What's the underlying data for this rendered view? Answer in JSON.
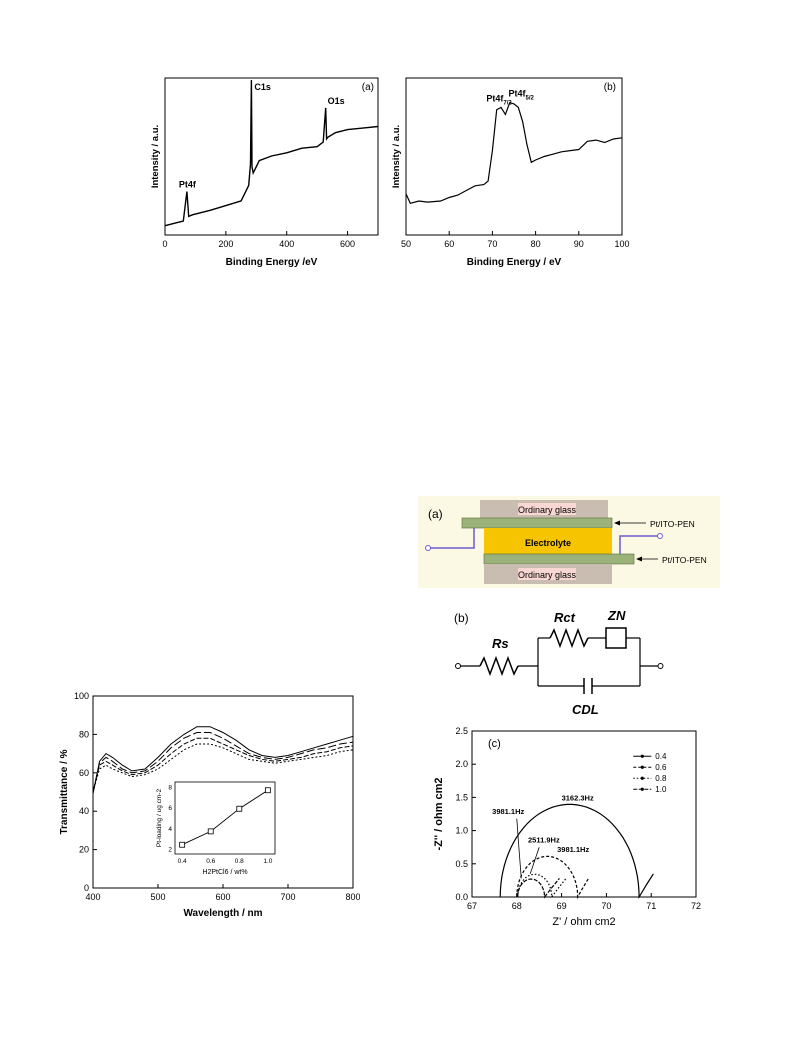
{
  "xps_survey": {
    "panel_label": "(a)",
    "xlabel": "Binding Energy /eV",
    "ylabel": "Intensity / a.u.",
    "x_ticks": [
      "0",
      "200",
      "400",
      "600"
    ],
    "peaks": [
      "Pt4f",
      "C1s",
      "O1s"
    ]
  },
  "xps_detail": {
    "panel_label": "(b)",
    "xlabel": "Binding Energy / eV",
    "ylabel": "Intensity / a.u.",
    "x_ticks": [
      "50",
      "60",
      "70",
      "80",
      "90",
      "100"
    ],
    "peak1_main": "Pt4f",
    "peak1_sub": "7/2",
    "peak2_main": "Pt4f",
    "peak2_sub": "5/2"
  },
  "cell": {
    "panel_label": "(a)",
    "top_glass": "Ordinary glass",
    "bottom_glass": "Ordinary glass",
    "electrolyte": "Electrolyte",
    "top_electrode": "Pt/ITO-PEN",
    "bottom_electrode": "Pt/ITO-PEN",
    "colors": {
      "glass": "#c9bdb2",
      "electrode": "#9bb37a",
      "electrolyte": "#f6c400",
      "label_bg": "#f8d7d3",
      "panel_bg": "#fbf8e3",
      "wire": "#6a5acd"
    }
  },
  "circuit": {
    "panel_label": "(b)",
    "rs": "Rs",
    "rct": "Rct",
    "zn": "ZN",
    "cdl": "CDL"
  },
  "chart_data": [
    {
      "type": "line",
      "xlabel": "Binding Energy /eV",
      "ylabel": "Intensity / a.u.",
      "xlim": [
        0,
        700
      ],
      "annotations": [
        "Pt4f",
        "C1s",
        "O1s",
        "(a)"
      ],
      "x": [
        0,
        40,
        60,
        72,
        78,
        90,
        150,
        200,
        250,
        275,
        281,
        284,
        286,
        290,
        310,
        350,
        400,
        450,
        500,
        520,
        528,
        531,
        535,
        560,
        600,
        650,
        700
      ],
      "series": [
        {
          "values": [
            0.06,
            0.08,
            0.09,
            0.28,
            0.12,
            0.13,
            0.16,
            0.19,
            0.22,
            0.32,
            0.46,
            1.0,
            0.44,
            0.4,
            0.48,
            0.51,
            0.53,
            0.56,
            0.57,
            0.6,
            0.82,
            0.62,
            0.63,
            0.66,
            0.68,
            0.69,
            0.7
          ]
        }
      ]
    },
    {
      "type": "line",
      "xlabel": "Binding Energy / eV",
      "ylabel": "Intensity / a.u.",
      "xlim": [
        50,
        100
      ],
      "annotations": [
        "Pt4f7/2",
        "Pt4f5/2",
        "(b)"
      ],
      "x": [
        50,
        51,
        53,
        55,
        58,
        60,
        62,
        64,
        66,
        68,
        69,
        70,
        71,
        72,
        73,
        74,
        75,
        76,
        77,
        78,
        79,
        80,
        82,
        84,
        86,
        88,
        90,
        92,
        94,
        96,
        98,
        100
      ],
      "series": [
        {
          "values": [
            0.18,
            0.1,
            0.12,
            0.11,
            0.12,
            0.15,
            0.17,
            0.21,
            0.25,
            0.26,
            0.29,
            0.55,
            0.9,
            0.92,
            0.86,
            0.96,
            0.95,
            0.92,
            0.8,
            0.6,
            0.45,
            0.47,
            0.5,
            0.52,
            0.54,
            0.55,
            0.56,
            0.63,
            0.64,
            0.62,
            0.65,
            0.66
          ]
        }
      ]
    },
    {
      "type": "line",
      "xlabel": "Wavelength / nm",
      "ylabel": "Transmittance / %",
      "xlim": [
        400,
        800
      ],
      "ylim": [
        0,
        100
      ],
      "x": [
        400,
        410,
        420,
        430,
        445,
        460,
        480,
        500,
        520,
        540,
        560,
        570,
        580,
        600,
        620,
        640,
        660,
        680,
        700,
        720,
        740,
        760,
        780,
        800
      ],
      "series": [
        {
          "values": [
            49,
            66,
            70,
            68,
            64,
            61,
            62,
            68,
            75,
            80,
            84,
            84,
            84,
            81,
            77,
            72,
            69,
            68,
            69,
            71,
            73,
            75,
            77,
            79
          ]
        },
        {
          "values": [
            50,
            65,
            68,
            66,
            62,
            60,
            61,
            66,
            73,
            78,
            81,
            81,
            81,
            78,
            74,
            70,
            68,
            67,
            68,
            70,
            72,
            73,
            75,
            76
          ]
        },
        {
          "values": [
            50,
            64,
            66,
            64,
            61,
            59,
            60,
            64,
            70,
            75,
            78,
            78,
            78,
            75,
            72,
            69,
            67,
            66,
            67,
            68,
            70,
            71,
            73,
            74
          ]
        },
        {
          "values": [
            50,
            62,
            64,
            62,
            60,
            58,
            59,
            62,
            67,
            72,
            75,
            75,
            75,
            73,
            70,
            67,
            66,
            65,
            66,
            67,
            68,
            69,
            71,
            72
          ]
        }
      ],
      "y_ticks": [
        "0",
        "20",
        "40",
        "60",
        "80",
        "100"
      ],
      "x_ticks": [
        "400",
        "500",
        "600",
        "700",
        "800"
      ],
      "inset": {
        "xlabel": "H2PtCl6 / wt%",
        "ylabel": "Pt-loading / ug cm-2",
        "x": [
          0.4,
          0.6,
          0.8,
          1.0
        ],
        "y": [
          2.4,
          3.7,
          5.9,
          7.7
        ],
        "x_ticks": [
          "0.4",
          "0.6",
          "0.8",
          "1.0"
        ],
        "y_ticks": [
          "2",
          "4",
          "6",
          "8"
        ]
      }
    },
    {
      "type": "scatter",
      "panel_label": "(c)",
      "xlabel": "Z' / ohm cm2",
      "ylabel": "-Z'' / ohm cm2",
      "xlim": [
        67,
        72
      ],
      "ylim": [
        0,
        2.5
      ],
      "x_ticks": [
        "67",
        "68",
        "69",
        "70",
        "71",
        "72"
      ],
      "y_ticks": [
        "0.0",
        "0.5",
        "1.0",
        "1.5",
        "2.0",
        "2.5"
      ],
      "legend": [
        "0.4",
        "0.6",
        "0.8",
        "1.0"
      ],
      "annotations": [
        "3162.3Hz",
        "3981.1Hz",
        "2511.9Hz",
        "3981.1Hz"
      ],
      "series": [
        {
          "name": "0.4",
          "center": 69.18,
          "radius": 1.55,
          "tail_end": 71.05,
          "peak_label": "3162.3Hz"
        },
        {
          "name": "0.6",
          "center": 68.68,
          "radius": 0.68,
          "tail_end": 69.6,
          "peak_label": "3981.1Hz"
        },
        {
          "name": "0.8",
          "center": 68.4,
          "radius": 0.38,
          "tail_end": 69.1,
          "peak_label": "2511.9Hz"
        },
        {
          "name": "1.0",
          "center": 68.32,
          "radius": 0.3,
          "tail_end": 68.95,
          "peak_label": "3981.1Hz"
        }
      ]
    }
  ]
}
